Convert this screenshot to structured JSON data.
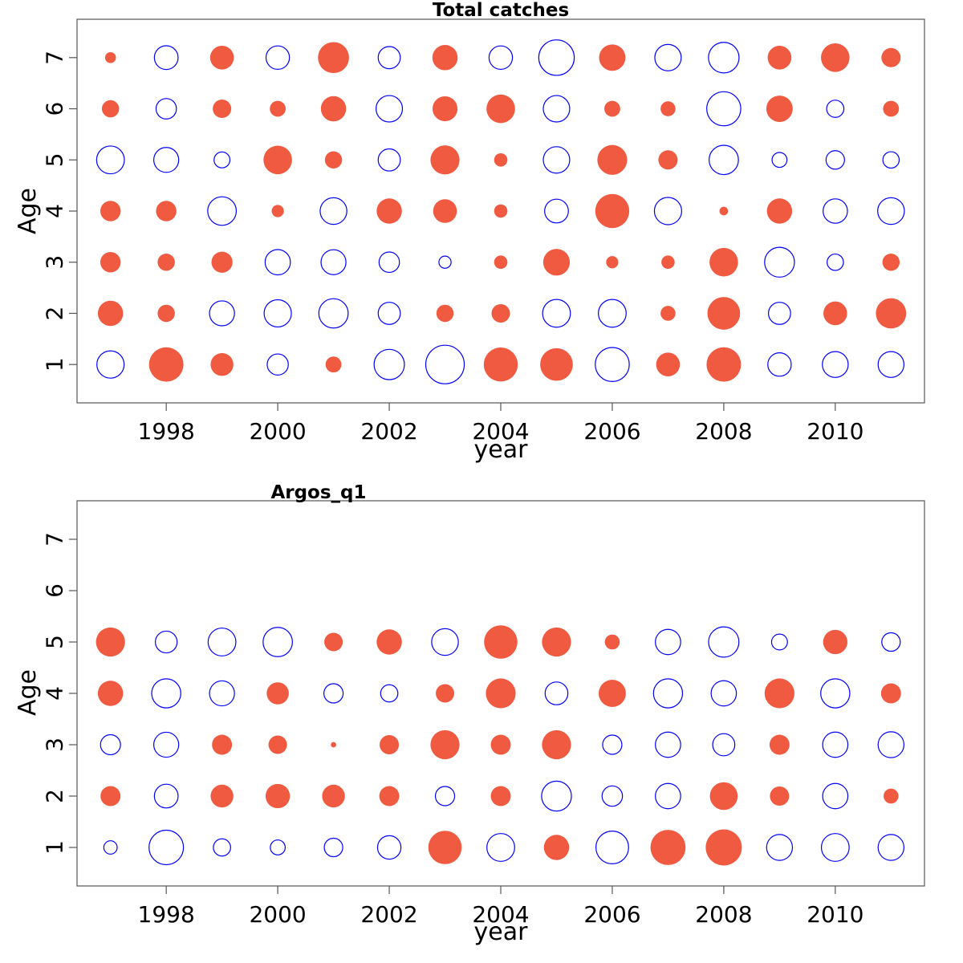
{
  "colors": {
    "positive": "#f05a41",
    "negative": "#0000ff"
  },
  "chart_data": [
    {
      "type": "scatter",
      "title": "Total catches",
      "xlabel": "year",
      "ylabel": "Age",
      "xlim": [
        1996.4,
        2011.6
      ],
      "ylim": [
        0.25,
        7.75
      ],
      "x_ticks": [
        1998,
        2000,
        2002,
        2004,
        2006,
        2008,
        2010
      ],
      "y_ticks": [
        1,
        2,
        3,
        4,
        5,
        6,
        7
      ],
      "years": [
        1997,
        1998,
        1999,
        2000,
        2001,
        2002,
        2003,
        2004,
        2005,
        2006,
        2007,
        2008,
        2009,
        2010,
        2011
      ],
      "ages": [
        1,
        2,
        3,
        4,
        5,
        6,
        7
      ],
      "note_values": "bubble residuals by age (rows) and year (columns); positive = filled, negative = open",
      "residuals": [
        [
          -0.5,
          0.8,
          0.35,
          -0.3,
          0.17,
          -0.62,
          -1.0,
          0.78,
          0.72,
          -0.78,
          0.38,
          0.8,
          -0.37,
          -0.45,
          -0.45
        ],
        [
          0.43,
          0.2,
          -0.42,
          -0.5,
          -0.58,
          -0.33,
          0.2,
          0.23,
          -0.52,
          -0.52,
          0.15,
          0.72,
          -0.33,
          0.38,
          0.62
        ],
        [
          0.28,
          0.2,
          0.3,
          -0.43,
          -0.42,
          -0.28,
          -0.1,
          0.12,
          0.48,
          0.1,
          0.12,
          0.55,
          -0.6,
          -0.18,
          0.2
        ],
        [
          0.28,
          0.28,
          -0.55,
          0.1,
          -0.48,
          0.43,
          0.38,
          0.12,
          -0.38,
          0.78,
          -0.5,
          0.05,
          0.43,
          -0.4,
          -0.48
        ],
        [
          -0.52,
          -0.42,
          -0.17,
          0.55,
          0.2,
          -0.33,
          0.57,
          0.12,
          -0.47,
          0.6,
          0.25,
          -0.58,
          -0.15,
          -0.23,
          -0.18
        ],
        [
          0.2,
          -0.28,
          0.23,
          0.17,
          0.43,
          -0.47,
          0.42,
          0.55,
          -0.47,
          0.17,
          0.15,
          -0.78,
          0.47,
          -0.2,
          0.17
        ],
        [
          0.08,
          -0.38,
          0.38,
          -0.37,
          0.65,
          -0.33,
          0.43,
          -0.37,
          -0.85,
          0.47,
          -0.47,
          -0.63,
          0.38,
          0.55,
          0.25
        ]
      ]
    },
    {
      "type": "scatter",
      "title": "Argos_q1",
      "xlabel": "year",
      "ylabel": "Age",
      "xlim": [
        1996.4,
        2011.6
      ],
      "ylim": [
        0.25,
        7.75
      ],
      "x_ticks": [
        1998,
        2000,
        2002,
        2004,
        2006,
        2008,
        2010
      ],
      "y_ticks": [
        1,
        2,
        3,
        4,
        5,
        6,
        7
      ],
      "years": [
        1997,
        1998,
        1999,
        2000,
        2001,
        2002,
        2003,
        2004,
        2005,
        2006,
        2007,
        2008,
        2009,
        2010,
        2011
      ],
      "ages": [
        1,
        2,
        3,
        4,
        5,
        6,
        7
      ],
      "note_values": "bubble residuals by age (rows) and year (columns); positive = filled, negative = open; ages 6-7 have no observations",
      "residuals": [
        [
          -0.12,
          -0.8,
          -0.2,
          -0.15,
          -0.23,
          -0.37,
          0.75,
          -0.52,
          0.43,
          -0.72,
          0.83,
          0.88,
          -0.45,
          -0.52,
          -0.45
        ],
        [
          0.27,
          -0.38,
          0.35,
          0.4,
          0.35,
          0.27,
          -0.25,
          0.27,
          -0.6,
          -0.28,
          -0.43,
          0.52,
          0.25,
          -0.43,
          0.15
        ],
        [
          -0.27,
          -0.42,
          0.27,
          0.23,
          0.02,
          0.25,
          0.57,
          0.27,
          0.57,
          -0.25,
          -0.43,
          -0.33,
          0.27,
          -0.43,
          -0.45
        ],
        [
          0.43,
          -0.57,
          -0.42,
          0.33,
          -0.25,
          -0.2,
          0.23,
          0.6,
          -0.35,
          0.5,
          -0.57,
          -0.43,
          0.6,
          -0.57,
          0.27
        ],
        [
          0.57,
          -0.32,
          -0.52,
          -0.58,
          0.23,
          0.43,
          -0.48,
          0.75,
          0.57,
          0.15,
          -0.43,
          -0.62,
          -0.17,
          0.4,
          -0.23
        ]
      ]
    }
  ]
}
